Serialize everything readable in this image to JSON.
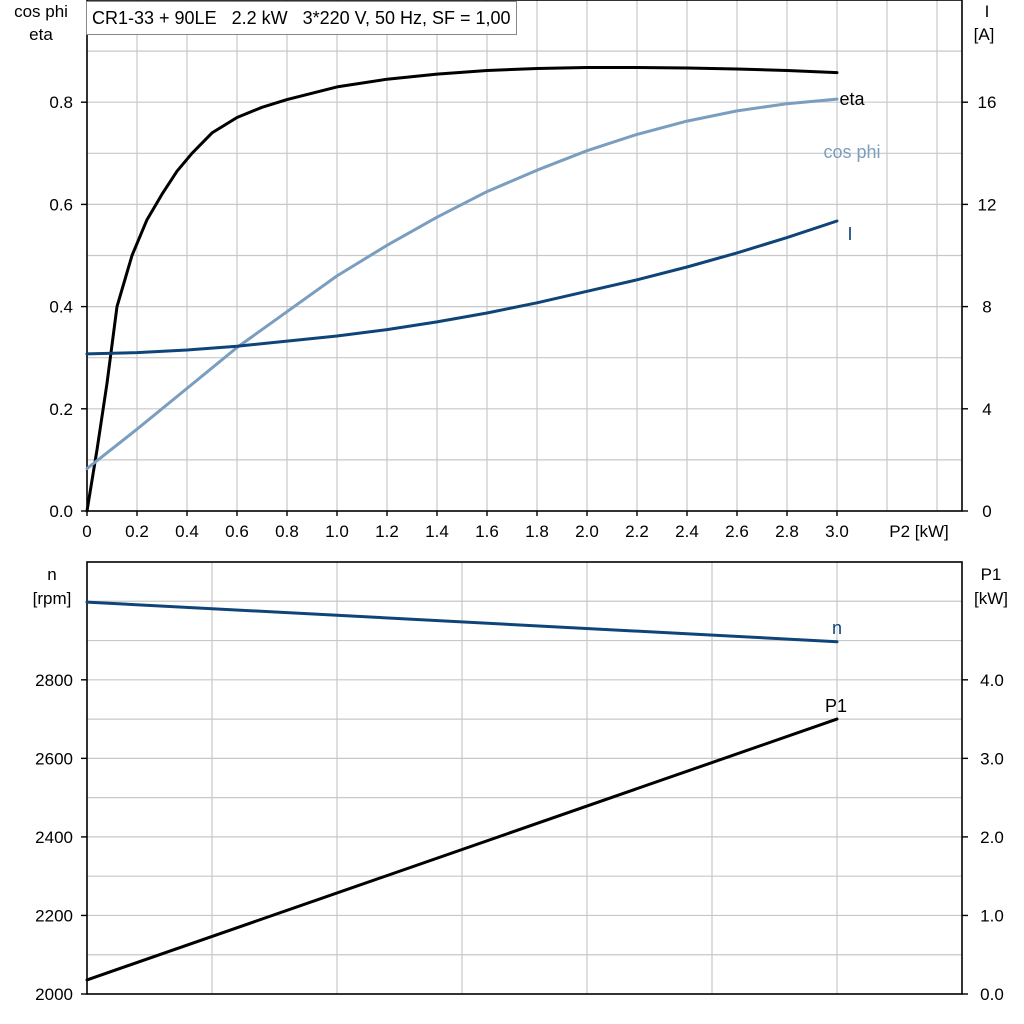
{
  "title": "CR1-33 + 90LE   2.2 kW   3*220 V, 50 Hz, SF = 1,00",
  "colors": {
    "eta": "#000000",
    "cosphi": "#7a9ebf",
    "I": "#0f4478",
    "n": "#0f4478",
    "P1": "#000000"
  },
  "top_chart": {
    "left_axis_title": [
      "cos phi",
      "eta"
    ],
    "right_axis_title": [
      "I",
      "[A]"
    ],
    "x_axis_label": "P2 [kW]",
    "x_ticks": [
      "0",
      "0.2",
      "0.4",
      "0.6",
      "0.8",
      "1.0",
      "1.2",
      "1.4",
      "1.6",
      "1.8",
      "2.0",
      "2.2",
      "2.4",
      "2.6",
      "2.8",
      "3.0"
    ],
    "left_ticks": [
      "0.0",
      "0.2",
      "0.4",
      "0.6",
      "0.8"
    ],
    "right_ticks": [
      "0",
      "4",
      "8",
      "12",
      "16"
    ]
  },
  "bottom_chart": {
    "left_axis_title": [
      "n",
      "[rpm]"
    ],
    "right_axis_title": [
      "P1",
      "[kW]"
    ],
    "left_ticks": [
      "2000",
      "2200",
      "2400",
      "2600",
      "2800"
    ],
    "right_ticks": [
      "0.0",
      "1.0",
      "2.0",
      "3.0",
      "4.0"
    ]
  },
  "chart_data": [
    {
      "type": "line",
      "title": "CR1-33 + 90LE   2.2 kW   3*220 V, 50 Hz, SF = 1,00",
      "xlabel": "P2 [kW]",
      "ylabel": "cos phi / eta",
      "y2label": "I [A]",
      "xlim": [
        0,
        3.5
      ],
      "ylim": [
        0,
        1.0
      ],
      "y2lim": [
        0,
        20
      ],
      "grid": true,
      "series": [
        {
          "name": "eta",
          "axis": "left",
          "label_at": "end",
          "x": [
            0,
            0.04,
            0.08,
            0.12,
            0.18,
            0.24,
            0.3,
            0.36,
            0.42,
            0.5,
            0.6,
            0.7,
            0.8,
            1.0,
            1.2,
            1.4,
            1.6,
            1.8,
            2.0,
            2.2,
            2.4,
            2.6,
            2.8,
            3.0
          ],
          "values": [
            0.0,
            0.12,
            0.25,
            0.4,
            0.5,
            0.57,
            0.62,
            0.665,
            0.7,
            0.74,
            0.77,
            0.79,
            0.805,
            0.83,
            0.845,
            0.855,
            0.862,
            0.866,
            0.868,
            0.868,
            0.867,
            0.865,
            0.862,
            0.858
          ]
        },
        {
          "name": "cos phi",
          "axis": "left",
          "label_at": "end",
          "x": [
            0,
            0.2,
            0.4,
            0.6,
            0.8,
            1.0,
            1.2,
            1.4,
            1.6,
            1.8,
            2.0,
            2.2,
            2.4,
            2.6,
            2.8,
            3.0
          ],
          "values": [
            0.083,
            0.16,
            0.24,
            0.32,
            0.39,
            0.46,
            0.52,
            0.575,
            0.625,
            0.667,
            0.705,
            0.737,
            0.763,
            0.783,
            0.797,
            0.806
          ]
        },
        {
          "name": "I",
          "axis": "right",
          "label_at": "end",
          "x": [
            0,
            0.2,
            0.4,
            0.6,
            0.8,
            1.0,
            1.2,
            1.4,
            1.6,
            1.8,
            2.0,
            2.2,
            2.4,
            2.6,
            2.8,
            3.0
          ],
          "values": [
            6.15,
            6.2,
            6.3,
            6.45,
            6.65,
            6.85,
            7.1,
            7.4,
            7.75,
            8.15,
            8.6,
            9.05,
            9.55,
            10.1,
            10.7,
            11.35
          ]
        }
      ]
    },
    {
      "type": "line",
      "ylabel": "n [rpm]",
      "y2label": "P1 [kW]",
      "xlim": [
        0,
        3.5
      ],
      "ylim": [
        2000,
        3100
      ],
      "y2lim": [
        0,
        5.5
      ],
      "grid": true,
      "series": [
        {
          "name": "n",
          "axis": "left",
          "label_at": "end",
          "x": [
            0,
            3.0
          ],
          "values": [
            2998,
            2897
          ]
        },
        {
          "name": "P1",
          "axis": "right",
          "label_at": "end",
          "x": [
            0,
            3.0
          ],
          "values": [
            0.18,
            3.5
          ]
        }
      ]
    }
  ]
}
